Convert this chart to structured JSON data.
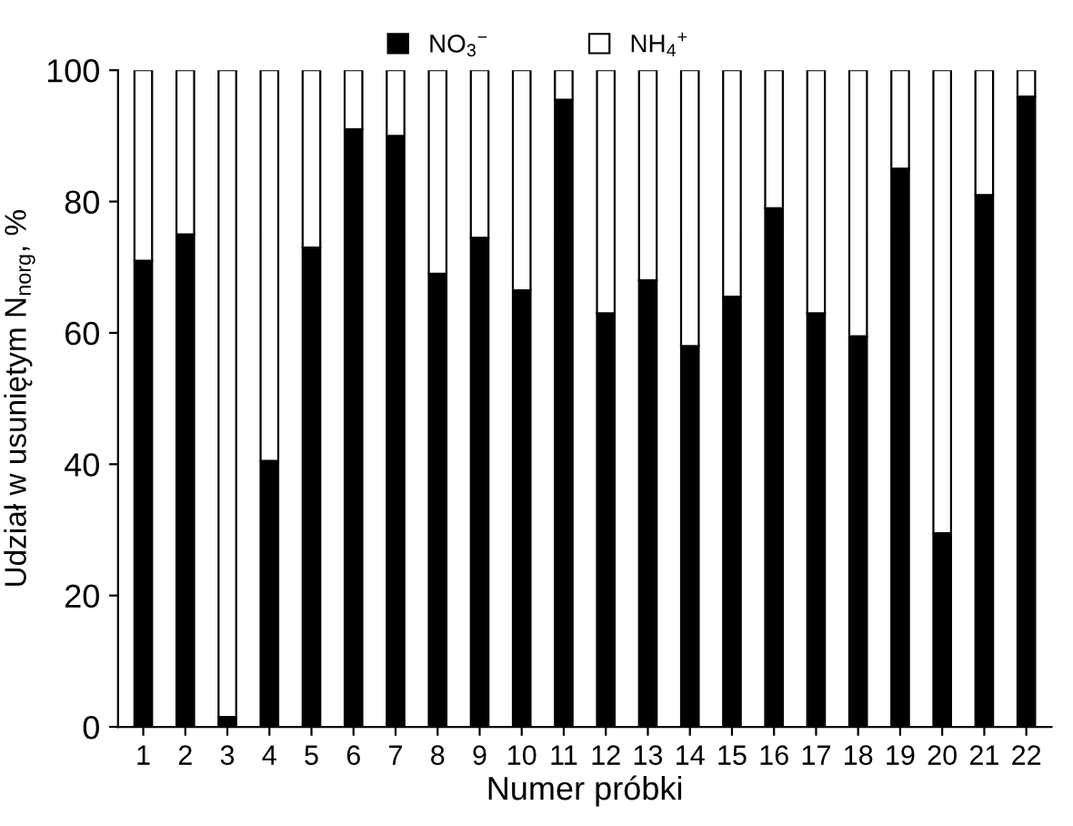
{
  "chart_data": {
    "type": "bar",
    "stacked": true,
    "xlabel": "Numer próbki",
    "ylabel": "Udział w usuniętym N$_{norg}$, %",
    "categories": [
      "1",
      "2",
      "3",
      "4",
      "5",
      "6",
      "7",
      "8",
      "9",
      "10",
      "11",
      "12",
      "13",
      "14",
      "15",
      "16",
      "17",
      "18",
      "19",
      "20",
      "21",
      "22"
    ],
    "series": [
      {
        "name": "NO$_{3}$$^{−}$",
        "color": "#000000",
        "values": [
          71,
          75,
          1.5,
          40.5,
          73,
          91,
          90,
          69,
          74.5,
          66.5,
          95.5,
          63,
          68,
          58,
          65.5,
          79,
          63,
          59.5,
          85,
          29.5,
          81,
          96
        ]
      },
      {
        "name": "NH$_{4}$$^{+}$",
        "color": "#ffffff",
        "values": [
          29,
          25,
          98.5,
          59.5,
          27,
          9,
          10,
          31,
          25.5,
          33.5,
          4.5,
          37,
          32,
          42,
          34.5,
          21,
          37,
          40.5,
          15,
          70.5,
          19,
          4
        ]
      }
    ],
    "ylim": [
      0,
      100
    ],
    "yticks": [
      0,
      20,
      40,
      60,
      80,
      100
    ],
    "legend": "top"
  }
}
